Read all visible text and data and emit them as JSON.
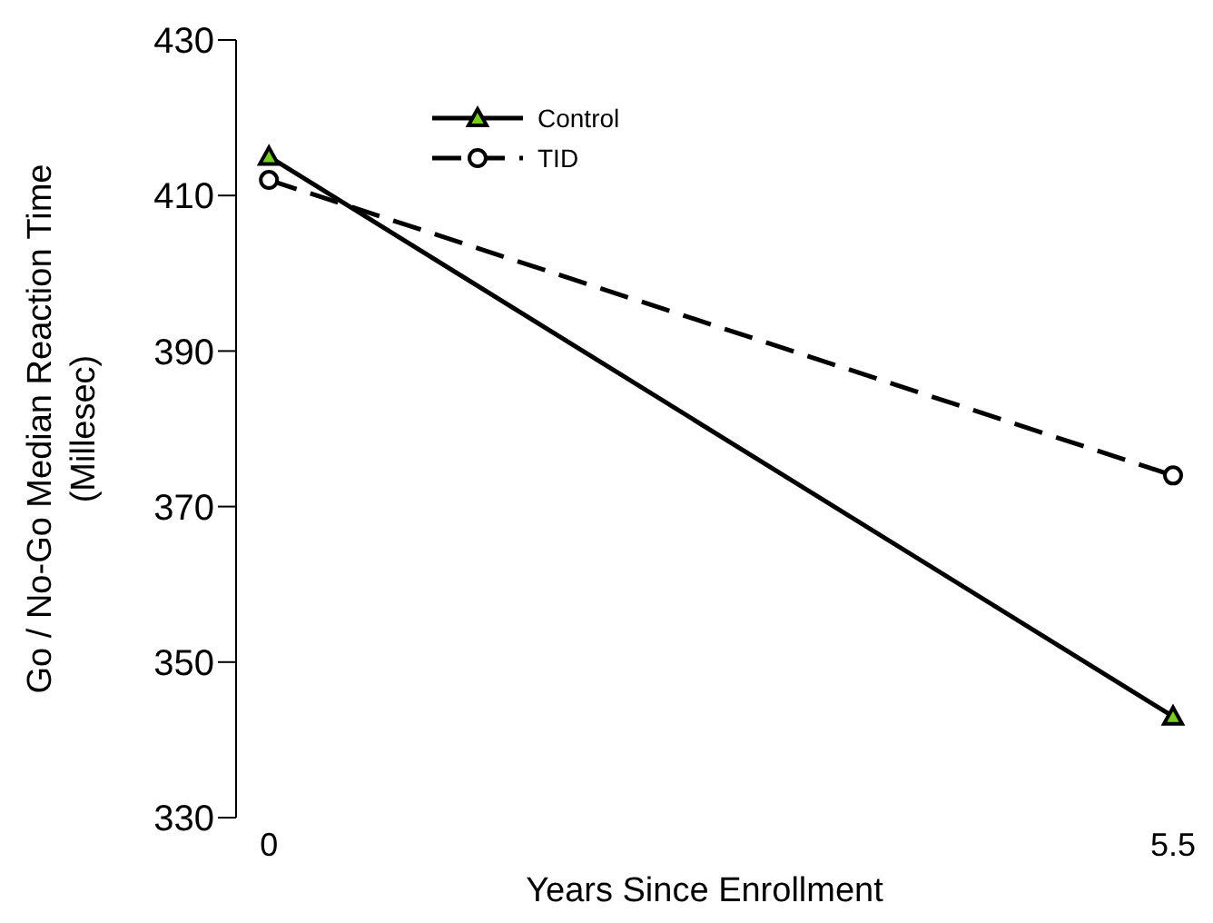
{
  "chart_data": {
    "type": "line",
    "xlabel": "Years Since Enrollment",
    "ylabel": "Go / No-Go Median Reaction Time\n(Millesec)",
    "x": [
      0,
      5.5
    ],
    "xlim": [
      -0.2,
      5.5
    ],
    "xticks": [
      0,
      5.5
    ],
    "ylim": [
      330,
      430
    ],
    "yticks": [
      330,
      350,
      370,
      390,
      410,
      430
    ],
    "grid": false,
    "legend": "top left",
    "series": [
      {
        "name": "Control",
        "color": "#000000",
        "values": [
          415,
          343
        ],
        "marker": "triangle",
        "line_style": "solid"
      },
      {
        "name": "TID",
        "color": "#000000",
        "values": [
          412,
          374
        ],
        "marker": "circle",
        "line_style": "dashed"
      }
    ]
  }
}
